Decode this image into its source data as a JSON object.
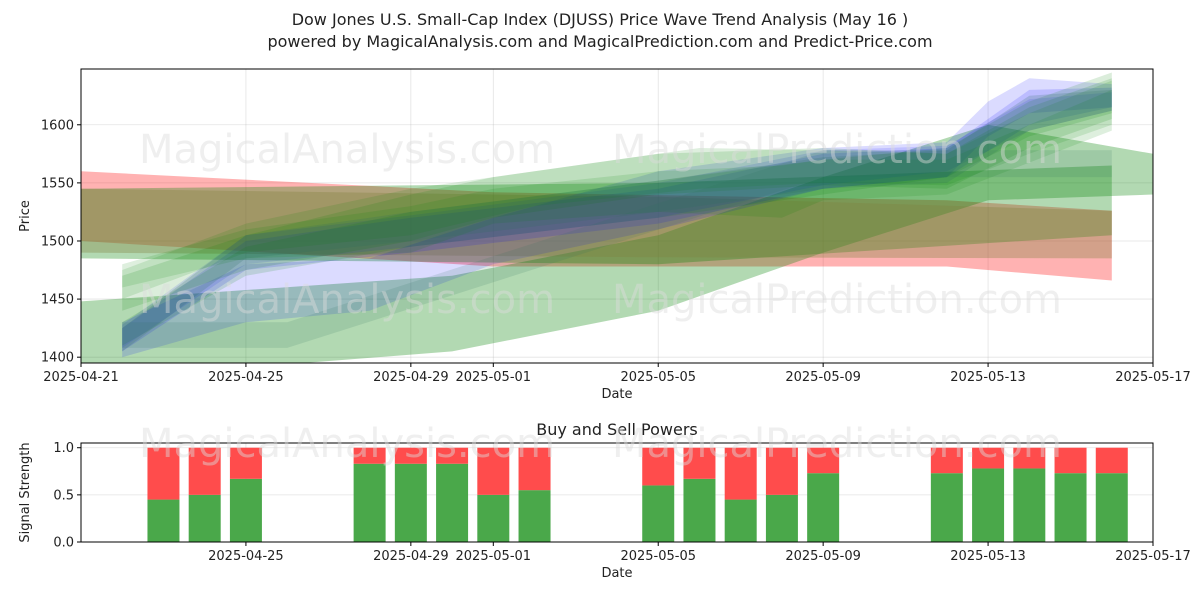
{
  "header": {
    "title": "Dow Jones U.S. Small-Cap Index (DJUSS) Price Wave Trend Analysis (May 16 )",
    "subtitle": "powered by MagicalAnalysis.com and MagicalPrediction.com and Predict-Price.com"
  },
  "watermarks": [
    "MagicalAnalysis.com",
    "MagicalPrediction.com"
  ],
  "chart_data": [
    {
      "type": "area",
      "title": "",
      "xlabel": "Date",
      "ylabel": "Price",
      "x_ticks": [
        "2025-04-21",
        "2025-04-25",
        "2025-04-29",
        "2025-05-01",
        "2025-05-05",
        "2025-05-09",
        "2025-05-13",
        "2025-05-17"
      ],
      "y_ticks": [
        1400,
        1450,
        1500,
        1550,
        1600
      ],
      "xlim": [
        "2025-04-21",
        "2025-05-17"
      ],
      "ylim": [
        1395,
        1648
      ],
      "grid": true,
      "series": [
        {
          "color": "#ff0000",
          "opacity": 0.3,
          "points": [
            [
              "2025-04-21",
              1500,
              1560
            ],
            [
              "2025-05-01",
              1478,
              1542
            ],
            [
              "2025-05-12",
              1478,
              1535
            ],
            [
              "2025-05-16",
              1466,
              1526
            ]
          ]
        },
        {
          "color": "#008000",
          "opacity": 0.3,
          "points": [
            [
              "2025-04-21",
              1380,
              1448
            ],
            [
              "2025-04-30",
              1405,
              1470
            ],
            [
              "2025-05-05",
              1440,
              1505
            ],
            [
              "2025-05-09",
              1490,
              1555
            ],
            [
              "2025-05-13",
              1535,
              1600
            ],
            [
              "2025-05-17",
              1540,
              1575
            ]
          ]
        },
        {
          "color": "#008000",
          "opacity": 0.3,
          "points": [
            [
              "2025-04-21",
              1485,
              1545
            ],
            [
              "2025-05-05",
              1480,
              1550
            ],
            [
              "2025-05-16",
              1505,
              1565
            ]
          ]
        },
        {
          "color": "#808040",
          "opacity": 0.35,
          "points": [
            [
              "2025-04-21",
              1490,
              1545
            ],
            [
              "2025-05-05",
              1486,
              1538
            ],
            [
              "2025-05-16",
              1485,
              1526
            ]
          ]
        },
        {
          "color": "#0000ff",
          "opacity": 0.14,
          "points": [
            [
              "2025-04-22",
              1400,
              1430
            ],
            [
              "2025-04-25",
              1430,
              1480
            ],
            [
              "2025-04-28",
              1440,
              1485
            ],
            [
              "2025-05-01",
              1480,
              1520
            ],
            [
              "2025-05-05",
              1510,
              1560
            ],
            [
              "2025-05-09",
              1545,
              1580
            ],
            [
              "2025-05-12",
              1555,
              1585
            ],
            [
              "2025-05-13",
              1590,
              1620
            ],
            [
              "2025-05-14",
              1610,
              1640
            ],
            [
              "2025-05-16",
              1615,
              1635
            ]
          ]
        },
        {
          "color": "#0000ff",
          "opacity": 0.14,
          "points": [
            [
              "2025-04-22",
              1405,
              1425
            ],
            [
              "2025-04-25",
              1475,
              1500
            ],
            [
              "2025-04-29",
              1490,
              1520
            ],
            [
              "2025-05-05",
              1515,
              1545
            ],
            [
              "2025-05-09",
              1545,
              1575
            ],
            [
              "2025-05-12",
              1555,
              1580
            ],
            [
              "2025-05-14",
              1600,
              1630
            ],
            [
              "2025-05-16",
              1615,
              1632
            ]
          ]
        },
        {
          "color": "#0000ff",
          "opacity": 0.12,
          "points": [
            [
              "2025-04-22",
              1408,
              1428
            ],
            [
              "2025-04-25",
              1480,
              1505
            ],
            [
              "2025-04-29",
              1495,
              1522
            ],
            [
              "2025-05-05",
              1520,
              1550
            ],
            [
              "2025-05-09",
              1548,
              1578
            ],
            [
              "2025-05-12",
              1560,
              1582
            ],
            [
              "2025-05-14",
              1595,
              1622
            ],
            [
              "2025-05-16",
              1612,
              1628
            ]
          ]
        },
        {
          "color": "#008000",
          "opacity": 0.14,
          "points": [
            [
              "2025-04-22",
              1410,
              1430
            ],
            [
              "2025-04-25",
              1470,
              1495
            ],
            [
              "2025-04-29",
              1495,
              1525
            ],
            [
              "2025-05-05",
              1520,
              1552
            ],
            [
              "2025-05-09",
              1540,
              1570
            ],
            [
              "2025-05-12",
              1555,
              1580
            ],
            [
              "2025-05-14",
              1590,
              1620
            ],
            [
              "2025-05-16",
              1610,
              1645
            ]
          ]
        },
        {
          "color": "#008000",
          "opacity": 0.14,
          "points": [
            [
              "2025-04-22",
              1440,
              1470
            ],
            [
              "2025-04-25",
              1475,
              1505
            ],
            [
              "2025-04-29",
              1500,
              1540
            ],
            [
              "2025-05-01",
              1520,
              1555
            ],
            [
              "2025-05-05",
              1540,
              1575
            ],
            [
              "2025-05-09",
              1548,
              1580
            ],
            [
              "2025-05-12",
              1545,
              1575
            ],
            [
              "2025-05-14",
              1580,
              1615
            ],
            [
              "2025-05-16",
              1605,
              1640
            ]
          ]
        },
        {
          "color": "#008000",
          "opacity": 0.13,
          "points": [
            [
              "2025-04-22",
              1450,
              1475
            ],
            [
              "2025-04-25",
              1490,
              1515
            ],
            [
              "2025-04-29",
              1505,
              1545
            ],
            [
              "2025-05-02",
              1530,
              1560
            ],
            [
              "2025-05-06",
              1545,
              1580
            ],
            [
              "2025-05-09",
              1550,
              1578
            ],
            [
              "2025-05-12",
              1548,
              1575
            ],
            [
              "2025-05-14",
              1575,
              1610
            ],
            [
              "2025-05-16",
              1600,
              1638
            ]
          ]
        },
        {
          "color": "#008000",
          "opacity": 0.13,
          "points": [
            [
              "2025-04-22",
              1460,
              1480
            ],
            [
              "2025-04-25",
              1485,
              1510
            ],
            [
              "2025-04-29",
              1490,
              1530
            ],
            [
              "2025-05-01",
              1515,
              1545
            ],
            [
              "2025-05-05",
              1525,
              1560
            ],
            [
              "2025-05-08",
              1520,
              1565
            ],
            [
              "2025-05-09",
              1535,
              1570
            ],
            [
              "2025-05-12",
              1540,
              1570
            ],
            [
              "2025-05-16",
              1595,
              1630
            ]
          ]
        },
        {
          "color": "#2f6f5f",
          "opacity": 0.2,
          "points": [
            [
              "2025-04-22",
              1405,
              1425
            ],
            [
              "2025-04-25",
              1485,
              1505
            ],
            [
              "2025-04-29",
              1500,
              1525
            ],
            [
              "2025-05-05",
              1525,
              1552
            ],
            [
              "2025-05-09",
              1545,
              1572
            ],
            [
              "2025-05-12",
              1550,
              1578
            ],
            [
              "2025-05-14",
              1595,
              1625
            ],
            [
              "2025-05-16",
              1612,
              1630
            ]
          ]
        },
        {
          "color": "#2f6f5f",
          "opacity": 0.15,
          "points": [
            [
              "2025-04-22",
              1408,
              1430
            ],
            [
              "2025-04-26",
              1408,
              1430
            ],
            [
              "2025-05-09",
              1555,
              1578
            ],
            [
              "2025-05-16",
              1555,
              1578
            ]
          ]
        }
      ]
    },
    {
      "type": "bar",
      "title": "Buy and Sell Powers",
      "xlabel": "Date",
      "ylabel": "Signal Strength",
      "x_ticks": [
        "2025-04-25",
        "2025-04-29",
        "2025-05-01",
        "2025-05-05",
        "2025-05-09",
        "2025-05-13",
        "2025-05-17"
      ],
      "y_ticks": [
        0.0,
        0.5,
        1.0
      ],
      "xlim": [
        "2025-04-21",
        "2025-05-17"
      ],
      "ylim": [
        0,
        1.05
      ],
      "grid": true,
      "stacked": true,
      "bars": [
        {
          "date": "2025-04-23",
          "buy": 0.45,
          "sell": 0.55
        },
        {
          "date": "2025-04-24",
          "buy": 0.5,
          "sell": 0.5
        },
        {
          "date": "2025-04-25",
          "buy": 0.67,
          "sell": 0.33
        },
        {
          "date": "2025-04-28",
          "buy": 0.83,
          "sell": 0.17
        },
        {
          "date": "2025-04-29",
          "buy": 0.83,
          "sell": 0.17
        },
        {
          "date": "2025-04-30",
          "buy": 0.83,
          "sell": 0.17
        },
        {
          "date": "2025-05-01",
          "buy": 0.5,
          "sell": 0.5
        },
        {
          "date": "2025-05-02",
          "buy": 0.55,
          "sell": 0.45
        },
        {
          "date": "2025-05-05",
          "buy": 0.6,
          "sell": 0.4
        },
        {
          "date": "2025-05-06",
          "buy": 0.67,
          "sell": 0.33
        },
        {
          "date": "2025-05-07",
          "buy": 0.45,
          "sell": 0.55
        },
        {
          "date": "2025-05-08",
          "buy": 0.5,
          "sell": 0.5
        },
        {
          "date": "2025-05-09",
          "buy": 0.73,
          "sell": 0.27
        },
        {
          "date": "2025-05-12",
          "buy": 0.73,
          "sell": 0.27
        },
        {
          "date": "2025-05-13",
          "buy": 0.78,
          "sell": 0.22
        },
        {
          "date": "2025-05-14",
          "buy": 0.78,
          "sell": 0.22
        },
        {
          "date": "2025-05-15",
          "buy": 0.73,
          "sell": 0.27
        },
        {
          "date": "2025-05-16",
          "buy": 0.73,
          "sell": 0.27
        }
      ],
      "colors": {
        "buy": "#4aa84a",
        "sell": "#ff4c4c"
      }
    }
  ]
}
